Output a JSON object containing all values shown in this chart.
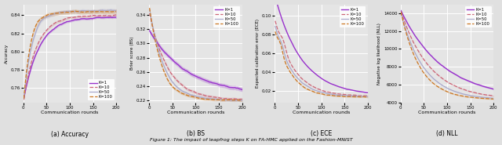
{
  "caption": "Figure 1: The impact of leapfrog steps K on FA-HMC applied on the Fashion-MNIST",
  "sublabels": [
    "(a) Accuracy",
    "(b) BS",
    "(c) ECE",
    "(d) NLL"
  ],
  "ylabels": [
    "Accuracy",
    "Brier score (BS)",
    "Expected calibration error (ECE)",
    "Negative log likelihood (NLL)"
  ],
  "xlabel": "Communication rounds",
  "colors": [
    "#9933cc",
    "#cc6677",
    "#aaaacc",
    "#cc7722"
  ],
  "linestyles": [
    "-",
    "--",
    "-",
    "--"
  ],
  "linewidths": [
    1.0,
    0.9,
    0.9,
    0.9
  ],
  "alpha_fill": 0.25,
  "n_rounds": 200,
  "bg_color": "#e5e5e5",
  "fig_color": "#e0e0e0",
  "grid_color": "#ffffff",
  "labels": [
    "K=1",
    "K=10",
    "K=50",
    "K=100"
  ],
  "acc_ylim": [
    0.744,
    0.852
  ],
  "bs_ylim": [
    0.217,
    0.355
  ],
  "ece_ylim": [
    0.0075,
    0.112
  ],
  "nll_ylim": [
    4000,
    15000
  ]
}
